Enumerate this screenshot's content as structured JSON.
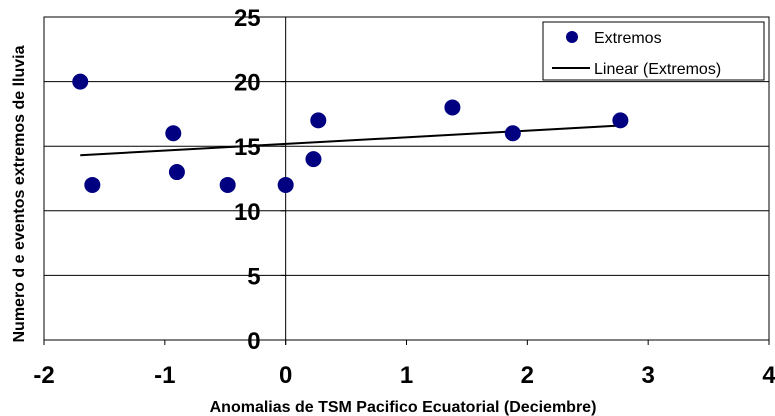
{
  "chart_data": {
    "type": "scatter",
    "title": "",
    "xlabel": "Anomalias de TSM Pacifico Ecuatorial (Deciembre)",
    "ylabel": "Numero d e eventos extremos de lluvia",
    "xlim": [
      -2,
      4
    ],
    "ylim": [
      0,
      25
    ],
    "xticks": [
      "-2",
      "-1",
      "0",
      "1",
      "2",
      "3",
      "4"
    ],
    "yticks": [
      "0",
      "5",
      "10",
      "15",
      "20",
      "25"
    ],
    "grid": "horizontal",
    "legend_position": "top-right",
    "series": [
      {
        "name": "Extremos",
        "color": "#000080",
        "points": [
          {
            "x": -1.7,
            "y": 20
          },
          {
            "x": -1.6,
            "y": 12
          },
          {
            "x": -0.93,
            "y": 16
          },
          {
            "x": -0.9,
            "y": 13
          },
          {
            "x": -0.48,
            "y": 12
          },
          {
            "x": 0.0,
            "y": 12
          },
          {
            "x": 0.23,
            "y": 14
          },
          {
            "x": 0.27,
            "y": 17
          },
          {
            "x": 1.38,
            "y": 18
          },
          {
            "x": 1.88,
            "y": 16
          },
          {
            "x": 2.77,
            "y": 17
          }
        ]
      }
    ],
    "trendline": {
      "name": "Linear (Extremos)",
      "color": "#000000",
      "x": [
        -1.7,
        2.77
      ],
      "y": [
        14.3,
        16.6
      ]
    }
  }
}
